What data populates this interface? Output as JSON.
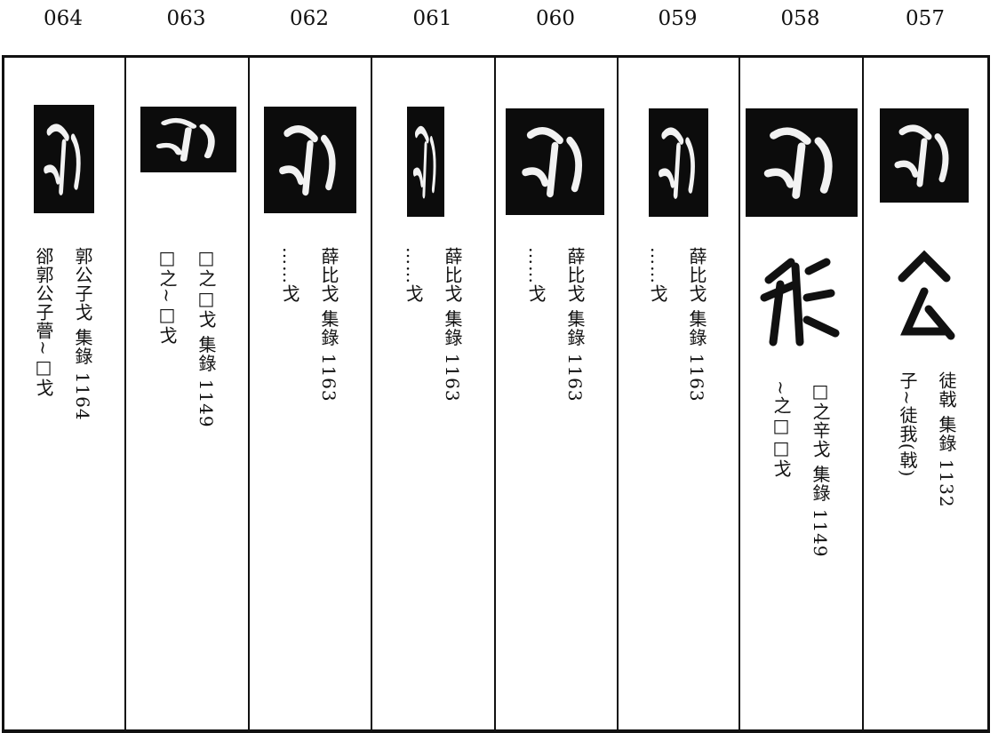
{
  "columns": [
    {
      "number": "064",
      "lines": [
        "郭公子戈 集錄 1164",
        "郤郭公子瞢~□戈"
      ]
    },
    {
      "number": "063",
      "lines": [
        "□之□戈 集錄 1149",
        "□之~□戈"
      ]
    },
    {
      "number": "062",
      "lines": [
        "薛比戈 集錄 1163",
        "……戈"
      ]
    },
    {
      "number": "061",
      "lines": [
        "薛比戈 集錄 1163",
        "……戈"
      ]
    },
    {
      "number": "060",
      "lines": [
        "薛比戈 集錄 1163",
        "……戈"
      ]
    },
    {
      "number": "059",
      "lines": [
        "薛比戈 集錄 1163",
        "……戈"
      ]
    },
    {
      "number": "058",
      "lines": [
        "□之辛戈 集錄 1149",
        "~之□□戈"
      ]
    },
    {
      "number": "057",
      "lines": [
        "徒戟 集錄 1132",
        "子~徒我(戟)"
      ]
    }
  ]
}
